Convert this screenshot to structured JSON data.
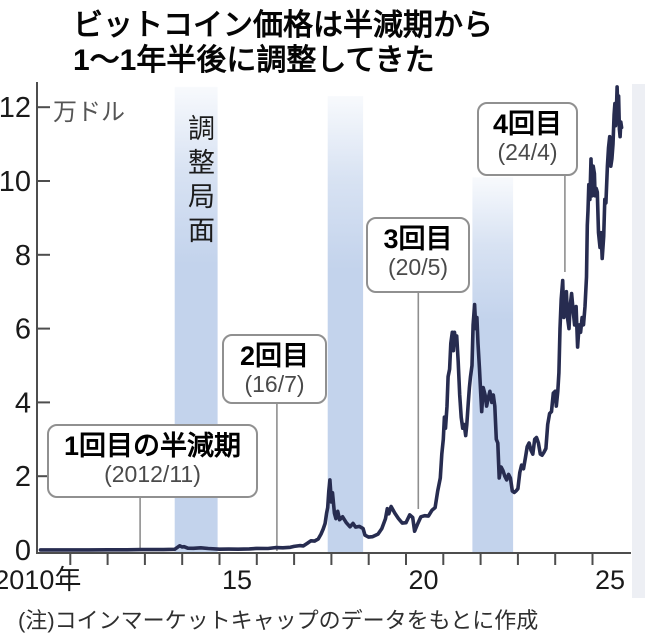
{
  "header": {
    "title_line1": "ビットコイン価格は半減期から",
    "title_line2": "1〜1年半後に調整してきた"
  },
  "note": "(注)コインマーケットキャップのデータをもとに作成",
  "chart_data": {
    "type": "line",
    "title": "ビットコイン価格は半減期から1〜1年半後に調整してきた",
    "unit_label": "万ドル",
    "ylabel": "万ドル",
    "band_color": "#c3d3ec",
    "axis_color": "#4d4d4d",
    "leader_color": "#8f8f8f",
    "x_axis": {
      "min": 2010,
      "max": 2026,
      "tick_step": 1,
      "tick_labels": [
        {
          "at": 2010.13,
          "text": "2010年"
        },
        {
          "at": 2015.47,
          "text": "15"
        },
        {
          "at": 2020.47,
          "text": "20"
        },
        {
          "at": 2025.47,
          "text": "25"
        }
      ]
    },
    "y_axis": {
      "min": 0,
      "max": 12.7,
      "ticks": [
        0,
        2,
        4,
        6,
        8,
        10,
        12
      ]
    },
    "bands": [
      {
        "from": 2013.8,
        "to": 2014.95,
        "top_value": 12.55,
        "label": "調整局面"
      },
      {
        "from": 2017.9,
        "to": 2018.85,
        "top_value": 12.3
      },
      {
        "from": 2021.78,
        "to": 2022.87,
        "top_value": 10.1
      }
    ],
    "annotations": [
      {
        "label": "1回目の半減期",
        "date": "(2012/11)",
        "year": 2012.87
      },
      {
        "label": "2回目",
        "date": "(16/7)",
        "year": 2016.54
      },
      {
        "label": "3回目",
        "date": "(20/5)",
        "year": 2020.33
      },
      {
        "label": "4回目",
        "date": "(24/4)",
        "year": 2024.26
      }
    ],
    "series": [
      {
        "name": "ビットコイン価格",
        "color": "#272c50",
        "points": [
          [
            2010.2,
            0.003
          ],
          [
            2010.5,
            0.003
          ],
          [
            2011,
            0.004
          ],
          [
            2011.5,
            0.004
          ],
          [
            2012,
            0.005
          ],
          [
            2012.5,
            0.005
          ],
          [
            2012.9,
            0.01
          ],
          [
            2013.2,
            0.01
          ],
          [
            2013.5,
            0.012
          ],
          [
            2013.8,
            0.02
          ],
          [
            2013.93,
            0.115
          ],
          [
            2014,
            0.08
          ],
          [
            2014.05,
            0.09
          ],
          [
            2014.15,
            0.05
          ],
          [
            2014.3,
            0.045
          ],
          [
            2014.5,
            0.06
          ],
          [
            2014.7,
            0.04
          ],
          [
            2015,
            0.022
          ],
          [
            2015.25,
            0.025
          ],
          [
            2015.5,
            0.023
          ],
          [
            2015.8,
            0.031
          ],
          [
            2016,
            0.043
          ],
          [
            2016.3,
            0.042
          ],
          [
            2016.5,
            0.066
          ],
          [
            2016.7,
            0.06
          ],
          [
            2016.9,
            0.073
          ],
          [
            2017,
            0.097
          ],
          [
            2017.15,
            0.12
          ],
          [
            2017.25,
            0.11
          ],
          [
            2017.35,
            0.18
          ],
          [
            2017.45,
            0.25
          ],
          [
            2017.55,
            0.24
          ],
          [
            2017.65,
            0.3
          ],
          [
            2017.72,
            0.43
          ],
          [
            2017.78,
            0.57
          ],
          [
            2017.83,
            0.72
          ],
          [
            2017.87,
            1
          ],
          [
            2017.9,
            1.15
          ],
          [
            2017.93,
            1.6
          ],
          [
            2017.96,
            1.9
          ],
          [
            2018,
            1.3
          ],
          [
            2018.03,
            1.55
          ],
          [
            2018.08,
            1
          ],
          [
            2018.12,
            0.85
          ],
          [
            2018.17,
            1.05
          ],
          [
            2018.22,
            0.82
          ],
          [
            2018.3,
            0.9
          ],
          [
            2018.4,
            0.74
          ],
          [
            2018.5,
            0.63
          ],
          [
            2018.58,
            0.72
          ],
          [
            2018.65,
            0.62
          ],
          [
            2018.75,
            0.64
          ],
          [
            2018.85,
            0.58
          ],
          [
            2018.9,
            0.4
          ],
          [
            2019,
            0.35
          ],
          [
            2019.1,
            0.36
          ],
          [
            2019.25,
            0.43
          ],
          [
            2019.35,
            0.58
          ],
          [
            2019.45,
            0.85
          ],
          [
            2019.5,
            1.12
          ],
          [
            2019.54,
            0.98
          ],
          [
            2019.6,
            1.18
          ],
          [
            2019.7,
            1
          ],
          [
            2019.8,
            0.85
          ],
          [
            2019.9,
            0.73
          ],
          [
            2020,
            0.74
          ],
          [
            2020.1,
            0.95
          ],
          [
            2020.18,
            0.88
          ],
          [
            2020.23,
            0.51
          ],
          [
            2020.3,
            0.68
          ],
          [
            2020.4,
            0.9
          ],
          [
            2020.5,
            0.93
          ],
          [
            2020.6,
            0.92
          ],
          [
            2020.7,
            1.08
          ],
          [
            2020.78,
            1.15
          ],
          [
            2020.85,
            1.6
          ],
          [
            2020.92,
            1.95
          ],
          [
            2020.96,
            2.6
          ],
          [
            2021,
            3
          ],
          [
            2021.03,
            3.6
          ],
          [
            2021.06,
            3.3
          ],
          [
            2021.1,
            3.9
          ],
          [
            2021.13,
            4.7
          ],
          [
            2021.17,
            4.9
          ],
          [
            2021.2,
            5.6
          ],
          [
            2021.24,
            5.9
          ],
          [
            2021.27,
            5.4
          ],
          [
            2021.3,
            5.9
          ],
          [
            2021.33,
            5.6
          ],
          [
            2021.36,
            5.8
          ],
          [
            2021.4,
            5.1
          ],
          [
            2021.44,
            4.2
          ],
          [
            2021.48,
            3.6
          ],
          [
            2021.52,
            3.3
          ],
          [
            2021.56,
            3.4
          ],
          [
            2021.6,
            3.1
          ],
          [
            2021.63,
            3.4
          ],
          [
            2021.67,
            4
          ],
          [
            2021.7,
            4.4
          ],
          [
            2021.73,
            4.7
          ],
          [
            2021.77,
            5
          ],
          [
            2021.8,
            6.1
          ],
          [
            2021.84,
            6.65
          ],
          [
            2021.87,
            6
          ],
          [
            2021.9,
            6.3
          ],
          [
            2021.93,
            5.6
          ],
          [
            2021.97,
            4.9
          ],
          [
            2022,
            4.3
          ],
          [
            2022.03,
            3.75
          ],
          [
            2022.07,
            4.4
          ],
          [
            2022.12,
            4.2
          ],
          [
            2022.16,
            3.9
          ],
          [
            2022.2,
            4.1
          ],
          [
            2022.25,
            4.3
          ],
          [
            2022.3,
            4
          ],
          [
            2022.34,
            4.2
          ],
          [
            2022.38,
            3.9
          ],
          [
            2022.42,
            3
          ],
          [
            2022.46,
            2.9
          ],
          [
            2022.5,
            1.95
          ],
          [
            2022.55,
            2.25
          ],
          [
            2022.6,
            2.15
          ],
          [
            2022.65,
            2
          ],
          [
            2022.7,
            1.9
          ],
          [
            2022.75,
            2.05
          ],
          [
            2022.8,
            1.95
          ],
          [
            2022.85,
            1.6
          ],
          [
            2022.9,
            1.56
          ],
          [
            2022.95,
            1.6
          ],
          [
            2023,
            1.66
          ],
          [
            2023.05,
            2.1
          ],
          [
            2023.1,
            2.3
          ],
          [
            2023.15,
            2.2
          ],
          [
            2023.2,
            2.5
          ],
          [
            2023.25,
            2.8
          ],
          [
            2023.3,
            2.9
          ],
          [
            2023.35,
            2.7
          ],
          [
            2023.4,
            2.6
          ],
          [
            2023.45,
            3
          ],
          [
            2023.5,
            3.05
          ],
          [
            2023.55,
            2.9
          ],
          [
            2023.6,
            2.6
          ],
          [
            2023.65,
            2.57
          ],
          [
            2023.7,
            2.65
          ],
          [
            2023.75,
            2.75
          ],
          [
            2023.8,
            3.4
          ],
          [
            2023.85,
            3.7
          ],
          [
            2023.9,
            3.75
          ],
          [
            2023.95,
            4.25
          ],
          [
            2024,
            4.3
          ],
          [
            2024.03,
            3.9
          ],
          [
            2024.07,
            4.3
          ],
          [
            2024.1,
            4.8
          ],
          [
            2024.13,
            6
          ],
          [
            2024.16,
            6.8
          ],
          [
            2024.2,
            7.3
          ],
          [
            2024.23,
            6.3
          ],
          [
            2024.27,
            6.5
          ],
          [
            2024.3,
            7
          ],
          [
            2024.33,
            6.3
          ],
          [
            2024.37,
            6
          ],
          [
            2024.4,
            6.6
          ],
          [
            2024.44,
            6.95
          ],
          [
            2024.48,
            6.5
          ],
          [
            2024.52,
            6.1
          ],
          [
            2024.56,
            6.6
          ],
          [
            2024.6,
            5.5
          ],
          [
            2024.64,
            6.1
          ],
          [
            2024.68,
            5.9
          ],
          [
            2024.72,
            6.3
          ],
          [
            2024.76,
            6.1
          ],
          [
            2024.8,
            6.6
          ],
          [
            2024.84,
            7.4
          ],
          [
            2024.86,
            8.8
          ],
          [
            2024.88,
            9.2
          ],
          [
            2024.9,
            9.9
          ],
          [
            2024.93,
            9.5
          ],
          [
            2024.96,
            10.6
          ],
          [
            2024.99,
            9.6
          ],
          [
            2025.02,
            10.4
          ],
          [
            2025.05,
            10.2
          ],
          [
            2025.07,
            9.6
          ],
          [
            2025.1,
            9.8
          ],
          [
            2025.13,
            9.7
          ],
          [
            2025.16,
            8.6
          ],
          [
            2025.2,
            8.2
          ],
          [
            2025.23,
            8.6
          ],
          [
            2025.26,
            7.9
          ],
          [
            2025.3,
            8.5
          ],
          [
            2025.33,
            9.5
          ],
          [
            2025.36,
            9.4
          ],
          [
            2025.4,
            10.4
          ],
          [
            2025.43,
            10.9
          ],
          [
            2025.46,
            11.2
          ],
          [
            2025.49,
            10.4
          ],
          [
            2025.52,
            10.6
          ],
          [
            2025.55,
            11
          ],
          [
            2025.58,
            11.8
          ],
          [
            2025.6,
            12.1
          ],
          [
            2025.62,
            11.5
          ],
          [
            2025.64,
            11.9
          ],
          [
            2025.66,
            12.55
          ],
          [
            2025.68,
            11.9
          ],
          [
            2025.7,
            12.3
          ],
          [
            2025.72,
            11.4
          ],
          [
            2025.74,
            11.2
          ],
          [
            2025.76,
            11.6
          ],
          [
            2025.78,
            11.45
          ]
        ]
      }
    ]
  }
}
